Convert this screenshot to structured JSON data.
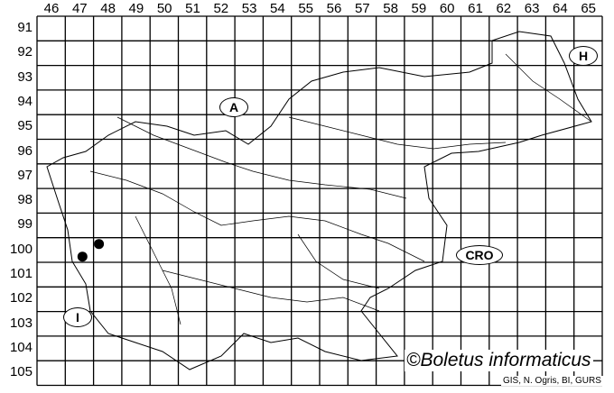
{
  "map": {
    "columns": [
      "46",
      "47",
      "48",
      "49",
      "50",
      "51",
      "52",
      "53",
      "54",
      "55",
      "56",
      "57",
      "58",
      "59",
      "60",
      "61",
      "62",
      "63",
      "64",
      "65"
    ],
    "rows": [
      "91",
      "92",
      "93",
      "94",
      "95",
      "96",
      "97",
      "98",
      "99",
      "100",
      "101",
      "102",
      "103",
      "104",
      "105"
    ],
    "country_labels": {
      "austria": "A",
      "hungary": "H",
      "croatia": "CRO",
      "italy": "I"
    },
    "records": [
      {
        "column": "48",
        "row": "100"
      },
      {
        "column": "47",
        "row": "100"
      }
    ],
    "title": "©Boletus informaticus",
    "credit": "GIS, N. Ogris, BI, GURS",
    "colors": {
      "grid": "#000000",
      "dot": "#000000",
      "background": "#ffffff"
    }
  }
}
